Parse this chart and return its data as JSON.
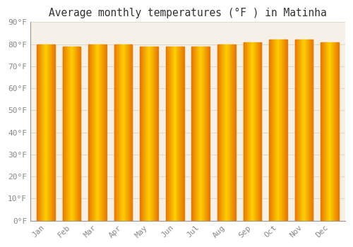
{
  "title": "Average monthly temperatures (°F ) in Matinha",
  "months": [
    "Jan",
    "Feb",
    "Mar",
    "Apr",
    "May",
    "Jun",
    "Jul",
    "Aug",
    "Sep",
    "Oct",
    "Nov",
    "Dec"
  ],
  "values": [
    80,
    79,
    80,
    80,
    79,
    79,
    79,
    80,
    81,
    82,
    82,
    81
  ],
  "ylim": [
    0,
    90
  ],
  "yticks": [
    0,
    10,
    20,
    30,
    40,
    50,
    60,
    70,
    80,
    90
  ],
  "ytick_labels": [
    "0°F",
    "10°F",
    "20°F",
    "30°F",
    "40°F",
    "50°F",
    "60°F",
    "70°F",
    "80°F",
    "90°F"
  ],
  "bar_color_center": "#FFD000",
  "bar_color_edge": "#E87800",
  "background_color": "#FFFFFF",
  "plot_bg_color": "#F5F0E8",
  "grid_color": "#DDDDCC",
  "title_fontsize": 10.5,
  "tick_fontsize": 8,
  "font_family": "monospace"
}
